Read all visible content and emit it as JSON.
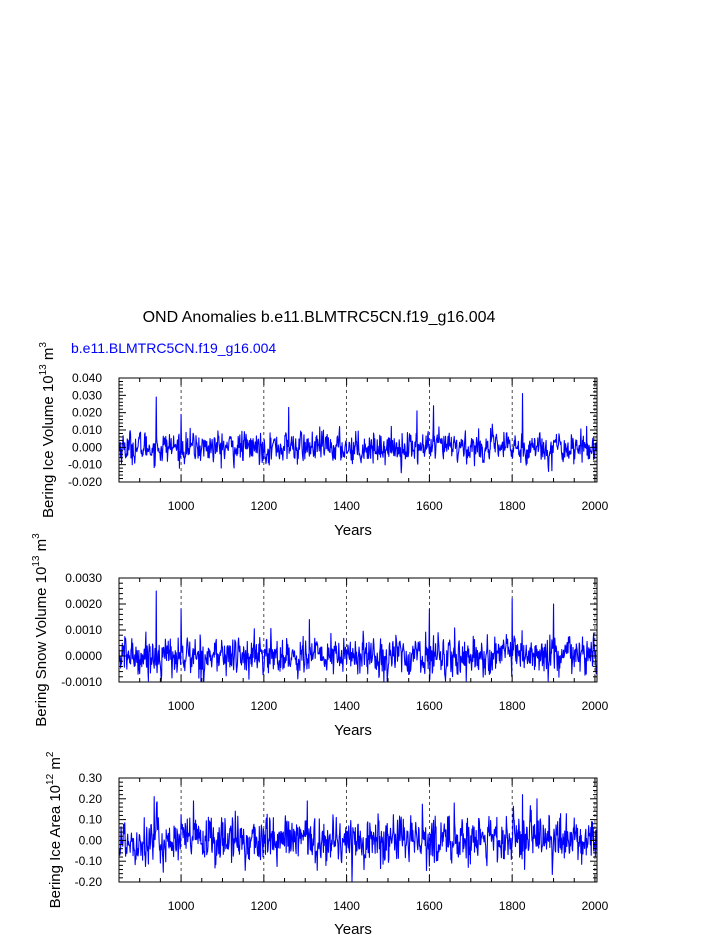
{
  "title": "OND Anomalies b.e11.BLMTRC5CN.f19_g16.004",
  "subtitle": "b.e11.BLMTRC5CN.f19_g16.004",
  "series_color": "#0000ff",
  "chart_data": [
    {
      "type": "line",
      "ylabel": "Bering Ice Volume 10",
      "ylabel_exp": "13",
      "ylabel_unit": "m",
      "ylabel_unit_exp": "3",
      "xlabel": "Years",
      "xlim": [
        850,
        2005
      ],
      "ylim": [
        -0.02,
        0.04
      ],
      "xticks": [
        "1000",
        "1200",
        "1400",
        "1600",
        "1800",
        "2000"
      ],
      "yticks": [
        "0.040",
        "0.030",
        "0.020",
        "0.010",
        "0.000",
        "-0.010",
        "-0.020"
      ],
      "vlines_dashed": [
        1000,
        1200,
        1400,
        1600,
        1800,
        2000
      ],
      "series": [
        {
          "x_start": 850,
          "x_end": 2005,
          "base_sd": 0.0042,
          "peaks": [
            [
              940,
              0.029
            ],
            [
              1825,
              0.031
            ],
            [
              1260,
              0.023
            ],
            [
              1610,
              0.024
            ],
            [
              1570,
              0.021
            ],
            [
              1000,
              0.019
            ]
          ],
          "trough": -0.011
        }
      ]
    },
    {
      "type": "line",
      "ylabel": "Bering Snow Volume 10",
      "ylabel_exp": "13",
      "ylabel_unit": "m",
      "ylabel_unit_exp": "3",
      "xlabel": "Years",
      "xlim": [
        850,
        2005
      ],
      "ylim": [
        -0.001,
        0.003
      ],
      "xticks": [
        "1000",
        "1200",
        "1400",
        "1600",
        "1800",
        "2000"
      ],
      "yticks": [
        "0.0030",
        "0.0020",
        "0.0010",
        "0.0000",
        "-0.0010"
      ],
      "vlines_dashed": [
        1000,
        1200,
        1400,
        1600,
        1800,
        2000
      ],
      "series": [
        {
          "x_start": 850,
          "x_end": 2005,
          "base_sd": 0.00035,
          "peaks": [
            [
              940,
              0.0025
            ],
            [
              1800,
              0.0022
            ],
            [
              1000,
              0.0018
            ],
            [
              1600,
              0.0018
            ],
            [
              1900,
              0.002
            ],
            [
              1310,
              0.0014
            ]
          ],
          "trough": -0.0009
        }
      ]
    },
    {
      "type": "line",
      "ylabel": "Bering Ice Area 10",
      "ylabel_exp": "12",
      "ylabel_unit": "m",
      "ylabel_unit_exp": "2",
      "xlabel": "Years",
      "xlim": [
        850,
        2005
      ],
      "ylim": [
        -0.2,
        0.3
      ],
      "xticks": [
        "1000",
        "1200",
        "1400",
        "1600",
        "1800",
        "2000"
      ],
      "yticks": [
        "0.30",
        "0.20",
        "0.10",
        "0.00",
        "-0.10",
        "-0.20"
      ],
      "vlines_dashed": [
        1000,
        1200,
        1400,
        1600,
        1800,
        2000
      ],
      "series": [
        {
          "x_start": 850,
          "x_end": 2005,
          "base_sd": 0.055,
          "peaks": [
            [
              935,
              0.21
            ],
            [
              1825,
              0.22
            ],
            [
              1030,
              0.19
            ],
            [
              1305,
              0.19
            ],
            [
              1860,
              0.2
            ],
            [
              1660,
              0.18
            ]
          ],
          "trough": -0.16
        }
      ]
    }
  ]
}
